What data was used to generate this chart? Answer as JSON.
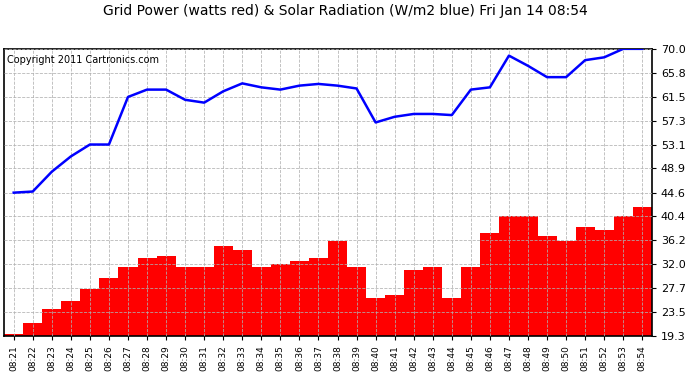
{
  "title": "Grid Power (watts red) & Solar Radiation (W/m2 blue) Fri Jan 14 08:54",
  "copyright": "Copyright 2011 Cartronics.com",
  "x_labels": [
    "08:21",
    "08:22",
    "08:23",
    "08:24",
    "08:25",
    "08:26",
    "08:27",
    "08:28",
    "08:29",
    "08:30",
    "08:31",
    "08:32",
    "08:33",
    "08:34",
    "08:35",
    "08:36",
    "08:37",
    "08:38",
    "08:39",
    "08:40",
    "08:41",
    "08:42",
    "08:43",
    "08:44",
    "08:45",
    "08:46",
    "08:47",
    "08:48",
    "08:49",
    "08:50",
    "08:51",
    "08:52",
    "08:53",
    "08:54"
  ],
  "blue_line": [
    44.6,
    44.8,
    48.3,
    51.0,
    53.1,
    53.1,
    61.5,
    62.8,
    62.8,
    61.0,
    60.5,
    62.5,
    63.9,
    63.2,
    62.8,
    63.5,
    63.8,
    63.5,
    63.0,
    57.0,
    58.0,
    58.5,
    58.5,
    58.3,
    62.8,
    63.2,
    68.8,
    67.0,
    65.0,
    65.0,
    68.0,
    68.5,
    70.0,
    70.0
  ],
  "red_bars": [
    19.6,
    21.5,
    24.0,
    25.5,
    27.5,
    29.5,
    31.5,
    33.0,
    33.5,
    31.5,
    31.5,
    35.2,
    34.5,
    31.5,
    32.0,
    32.5,
    33.0,
    36.0,
    31.5,
    26.0,
    26.5,
    31.0,
    31.5,
    26.0,
    31.5,
    37.5,
    40.5,
    40.5,
    37.0,
    36.0,
    38.5,
    38.0,
    40.5,
    42.0
  ],
  "bar_bottom": 19.3,
  "ylim_min": 19.3,
  "ylim_max": 70.0,
  "yticks": [
    19.3,
    23.5,
    27.7,
    32.0,
    36.2,
    40.4,
    44.6,
    48.9,
    53.1,
    57.3,
    61.5,
    65.8,
    70.0
  ],
  "bar_color": "#ff0000",
  "line_color": "#0000ff",
  "bg_color": "#ffffff",
  "plot_bg_color": "#ffffff",
  "grid_color": "#b0b0b0",
  "title_fontsize": 10,
  "copyright_fontsize": 7,
  "figwidth": 6.9,
  "figheight": 3.75,
  "dpi": 100
}
